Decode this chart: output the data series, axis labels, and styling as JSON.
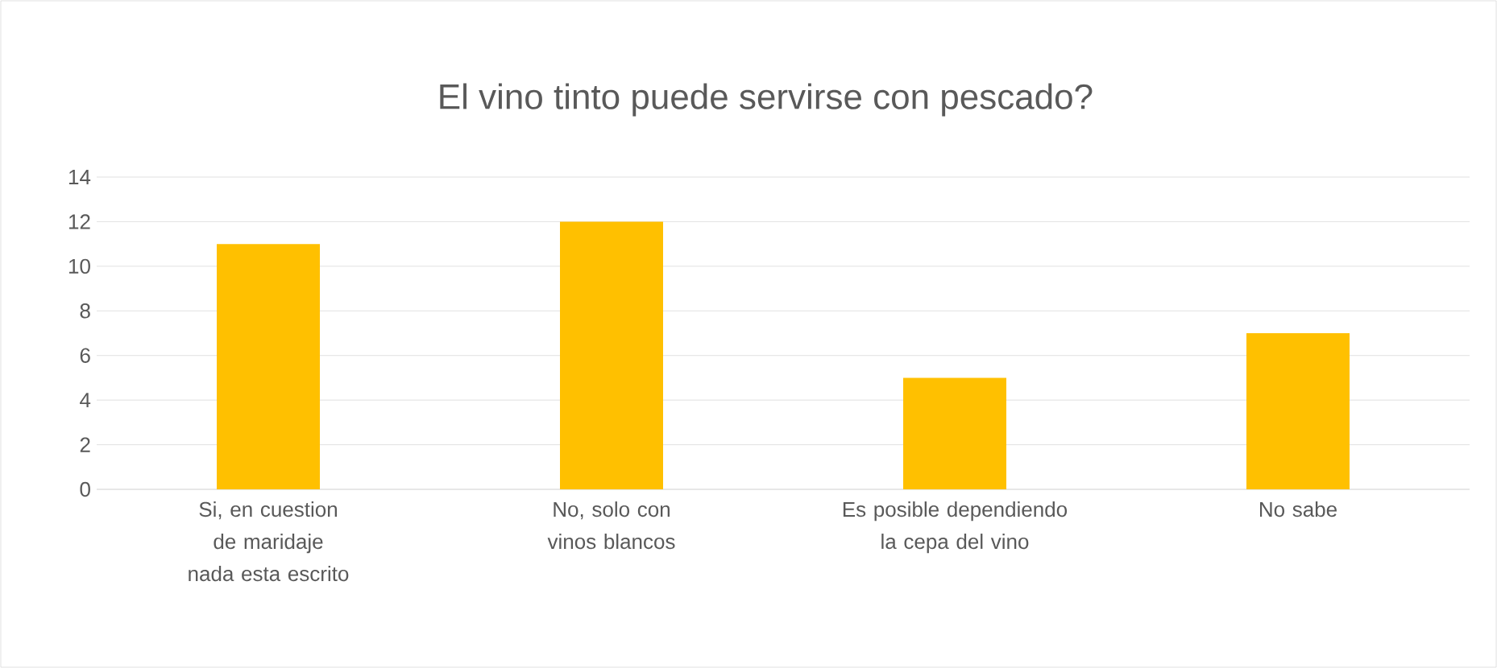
{
  "chart_data": {
    "type": "bar",
    "title": "El vino tinto puede servirse con pescado?",
    "categories": [
      "Si, en cuestion de maridaje nada esta escrito",
      "No, solo con vinos blancos",
      "Es posible dependiendo la cepa del vino",
      "No sabe"
    ],
    "values": [
      11,
      12,
      5,
      7
    ],
    "color": "#ffc000",
    "ylim": [
      0,
      14
    ],
    "yticks": [
      0,
      2,
      4,
      6,
      8,
      10,
      12,
      14
    ],
    "grid": "y"
  }
}
